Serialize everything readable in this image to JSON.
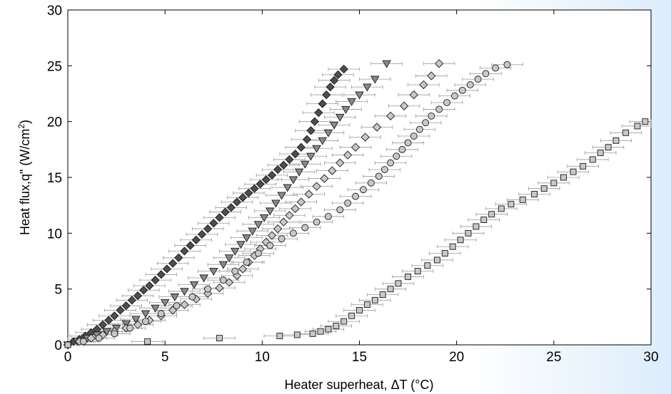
{
  "chart_data": {
    "type": "scatter",
    "title": "",
    "xlabel": "Heater superheat, ΔT (°C)",
    "ylabel_main": "Heat flux,q\" (W/cm",
    "ylabel_sup": "2",
    "ylabel_end": ")",
    "xlim": [
      0,
      30
    ],
    "ylim": [
      0,
      30
    ],
    "xticks": [
      0,
      5,
      10,
      15,
      20,
      25,
      30
    ],
    "yticks": [
      0,
      5,
      10,
      15,
      20,
      25,
      30
    ],
    "grid": false,
    "legend": "none",
    "x_error_bar": 0.8,
    "series": [
      {
        "marker": "diamond",
        "fill": "#4d4d4d",
        "points": [
          [
            0,
            0
          ],
          [
            0.3,
            0.3
          ],
          [
            0.6,
            0.5
          ],
          [
            0.9,
            0.8
          ],
          [
            1.2,
            1.1
          ],
          [
            1.5,
            1.4
          ],
          [
            1.8,
            1.8
          ],
          [
            2.1,
            2.2
          ],
          [
            2.4,
            2.6
          ],
          [
            2.7,
            3.1
          ],
          [
            3.0,
            3.5
          ],
          [
            3.3,
            4.0
          ],
          [
            3.6,
            4.4
          ],
          [
            3.9,
            4.9
          ],
          [
            4.2,
            5.3
          ],
          [
            4.5,
            5.8
          ],
          [
            4.8,
            6.3
          ],
          [
            5.1,
            6.8
          ],
          [
            5.4,
            7.3
          ],
          [
            5.7,
            7.8
          ],
          [
            6.0,
            8.4
          ],
          [
            6.3,
            8.9
          ],
          [
            6.6,
            9.4
          ],
          [
            6.9,
            9.9
          ],
          [
            7.2,
            10.4
          ],
          [
            7.5,
            10.9
          ],
          [
            7.8,
            11.4
          ],
          [
            8.1,
            11.9
          ],
          [
            8.4,
            12.3
          ],
          [
            8.7,
            12.8
          ],
          [
            9.0,
            13.2
          ],
          [
            9.3,
            13.6
          ],
          [
            9.6,
            14.0
          ],
          [
            9.9,
            14.4
          ],
          [
            10.2,
            14.8
          ],
          [
            10.5,
            15.2
          ],
          [
            10.8,
            15.7
          ],
          [
            11.1,
            16.1
          ],
          [
            11.4,
            16.6
          ],
          [
            11.7,
            17.1
          ],
          [
            12.0,
            17.7
          ],
          [
            12.3,
            18.4
          ],
          [
            12.5,
            19.2
          ],
          [
            12.7,
            20.0
          ],
          [
            12.9,
            20.8
          ],
          [
            13.1,
            21.6
          ],
          [
            13.3,
            22.4
          ],
          [
            13.5,
            23.1
          ],
          [
            13.7,
            23.7
          ],
          [
            13.9,
            24.2
          ],
          [
            14.2,
            24.7
          ]
        ]
      },
      {
        "marker": "triangle-down",
        "fill": "#8a8a8a",
        "points": [
          [
            0,
            0
          ],
          [
            0.5,
            0.3
          ],
          [
            1.0,
            0.6
          ],
          [
            1.5,
            0.9
          ],
          [
            2.0,
            1.2
          ],
          [
            2.5,
            1.5
          ],
          [
            3.0,
            1.9
          ],
          [
            3.5,
            2.3
          ],
          [
            4.0,
            2.8
          ],
          [
            4.5,
            3.3
          ],
          [
            5.0,
            3.8
          ],
          [
            5.5,
            4.3
          ],
          [
            6.0,
            4.8
          ],
          [
            6.5,
            5.4
          ],
          [
            7.0,
            6.0
          ],
          [
            7.5,
            6.6
          ],
          [
            8.0,
            7.2
          ],
          [
            8.3,
            7.8
          ],
          [
            8.6,
            8.4
          ],
          [
            8.9,
            9.0
          ],
          [
            9.2,
            9.6
          ],
          [
            9.5,
            10.2
          ],
          [
            9.8,
            10.8
          ],
          [
            10.1,
            11.4
          ],
          [
            10.4,
            12.0
          ],
          [
            10.7,
            12.7
          ],
          [
            11.0,
            13.4
          ],
          [
            11.3,
            14.1
          ],
          [
            11.6,
            14.8
          ],
          [
            11.9,
            15.5
          ],
          [
            12.2,
            16.2
          ],
          [
            12.5,
            16.9
          ],
          [
            12.8,
            17.6
          ],
          [
            13.1,
            18.3
          ],
          [
            13.4,
            19.0
          ],
          [
            13.7,
            19.7
          ],
          [
            14.0,
            20.4
          ],
          [
            14.3,
            21.1
          ],
          [
            14.6,
            21.8
          ],
          [
            15.0,
            22.4
          ],
          [
            15.4,
            23.1
          ],
          [
            15.8,
            23.8
          ],
          [
            16.4,
            25.2
          ]
        ]
      },
      {
        "marker": "diamond",
        "fill": "#c8c8c8",
        "points": [
          [
            0,
            0
          ],
          [
            0.6,
            0.3
          ],
          [
            1.2,
            0.6
          ],
          [
            1.8,
            0.9
          ],
          [
            2.4,
            1.2
          ],
          [
            3.0,
            1.5
          ],
          [
            3.6,
            1.8
          ],
          [
            4.2,
            2.2
          ],
          [
            4.8,
            2.6
          ],
          [
            5.4,
            3.1
          ],
          [
            6.0,
            3.6
          ],
          [
            6.6,
            4.1
          ],
          [
            7.2,
            4.6
          ],
          [
            7.8,
            5.1
          ],
          [
            8.3,
            5.6
          ],
          [
            8.7,
            6.2
          ],
          [
            9.0,
            6.8
          ],
          [
            9.3,
            7.4
          ],
          [
            9.6,
            8.0
          ],
          [
            9.9,
            8.6
          ],
          [
            10.2,
            9.2
          ],
          [
            10.5,
            9.8
          ],
          [
            10.8,
            10.4
          ],
          [
            11.1,
            11.0
          ],
          [
            11.4,
            11.6
          ],
          [
            11.7,
            12.2
          ],
          [
            12.0,
            12.8
          ],
          [
            12.4,
            13.5
          ],
          [
            12.8,
            14.2
          ],
          [
            13.2,
            14.9
          ],
          [
            13.6,
            15.6
          ],
          [
            14.0,
            16.3
          ],
          [
            14.4,
            17.0
          ],
          [
            14.8,
            17.7
          ],
          [
            15.3,
            18.6
          ],
          [
            15.9,
            19.5
          ],
          [
            16.6,
            20.5
          ],
          [
            17.3,
            21.4
          ],
          [
            17.8,
            22.4
          ],
          [
            18.3,
            23.3
          ],
          [
            18.7,
            24.1
          ],
          [
            19.1,
            25.2
          ]
        ]
      },
      {
        "marker": "circle",
        "fill": "#c8c8c8",
        "points": [
          [
            0,
            0
          ],
          [
            0.8,
            0.3
          ],
          [
            1.6,
            0.6
          ],
          [
            2.4,
            1.0
          ],
          [
            3.2,
            1.5
          ],
          [
            4.0,
            2.1
          ],
          [
            4.8,
            2.8
          ],
          [
            5.6,
            3.5
          ],
          [
            6.4,
            4.3
          ],
          [
            7.2,
            5.0
          ],
          [
            8.0,
            5.8
          ],
          [
            8.6,
            6.6
          ],
          [
            9.2,
            7.4
          ],
          [
            9.8,
            8.2
          ],
          [
            10.4,
            8.9
          ],
          [
            11.0,
            9.5
          ],
          [
            11.6,
            10.0
          ],
          [
            12.2,
            10.5
          ],
          [
            12.8,
            11.0
          ],
          [
            13.4,
            11.5
          ],
          [
            14.0,
            12.1
          ],
          [
            14.4,
            12.7
          ],
          [
            14.8,
            13.3
          ],
          [
            15.2,
            13.9
          ],
          [
            15.6,
            14.5
          ],
          [
            16.0,
            15.1
          ],
          [
            16.3,
            15.7
          ],
          [
            16.6,
            16.3
          ],
          [
            16.9,
            16.9
          ],
          [
            17.2,
            17.5
          ],
          [
            17.5,
            18.1
          ],
          [
            17.8,
            18.7
          ],
          [
            18.1,
            19.3
          ],
          [
            18.4,
            19.9
          ],
          [
            18.7,
            20.5
          ],
          [
            19.1,
            21.1
          ],
          [
            19.5,
            21.7
          ],
          [
            19.9,
            22.3
          ],
          [
            20.3,
            22.8
          ],
          [
            20.7,
            23.3
          ],
          [
            21.1,
            23.8
          ],
          [
            21.5,
            24.3
          ],
          [
            22.0,
            24.8
          ],
          [
            22.6,
            25.1
          ]
        ]
      },
      {
        "marker": "square",
        "fill": "#c8c8c8",
        "points": [
          [
            0,
            0
          ],
          [
            4.1,
            0.3
          ],
          [
            7.8,
            0.6
          ],
          [
            10.9,
            0.8
          ],
          [
            11.8,
            0.9
          ],
          [
            12.6,
            1.0
          ],
          [
            13.0,
            1.2
          ],
          [
            13.4,
            1.4
          ],
          [
            13.8,
            1.7
          ],
          [
            14.2,
            2.1
          ],
          [
            14.6,
            2.6
          ],
          [
            15.0,
            3.1
          ],
          [
            15.4,
            3.6
          ],
          [
            15.8,
            4.0
          ],
          [
            16.2,
            4.5
          ],
          [
            16.6,
            5.0
          ],
          [
            17.0,
            5.5
          ],
          [
            17.5,
            6.1
          ],
          [
            18.0,
            6.6
          ],
          [
            18.5,
            7.1
          ],
          [
            19.0,
            7.6
          ],
          [
            19.4,
            8.2
          ],
          [
            19.8,
            8.8
          ],
          [
            20.2,
            9.4
          ],
          [
            20.6,
            10.0
          ],
          [
            21.0,
            10.6
          ],
          [
            21.4,
            11.2
          ],
          [
            21.8,
            11.7
          ],
          [
            22.3,
            12.2
          ],
          [
            22.8,
            12.6
          ],
          [
            23.4,
            13.0
          ],
          [
            24.0,
            13.5
          ],
          [
            24.5,
            14.0
          ],
          [
            25.0,
            14.5
          ],
          [
            25.5,
            15.0
          ],
          [
            26.0,
            15.5
          ],
          [
            26.5,
            16.0
          ],
          [
            27.0,
            16.6
          ],
          [
            27.4,
            17.2
          ],
          [
            27.8,
            17.7
          ],
          [
            28.2,
            18.3
          ],
          [
            28.7,
            19.0
          ],
          [
            29.3,
            19.6
          ],
          [
            29.7,
            20.0
          ]
        ]
      }
    ]
  }
}
